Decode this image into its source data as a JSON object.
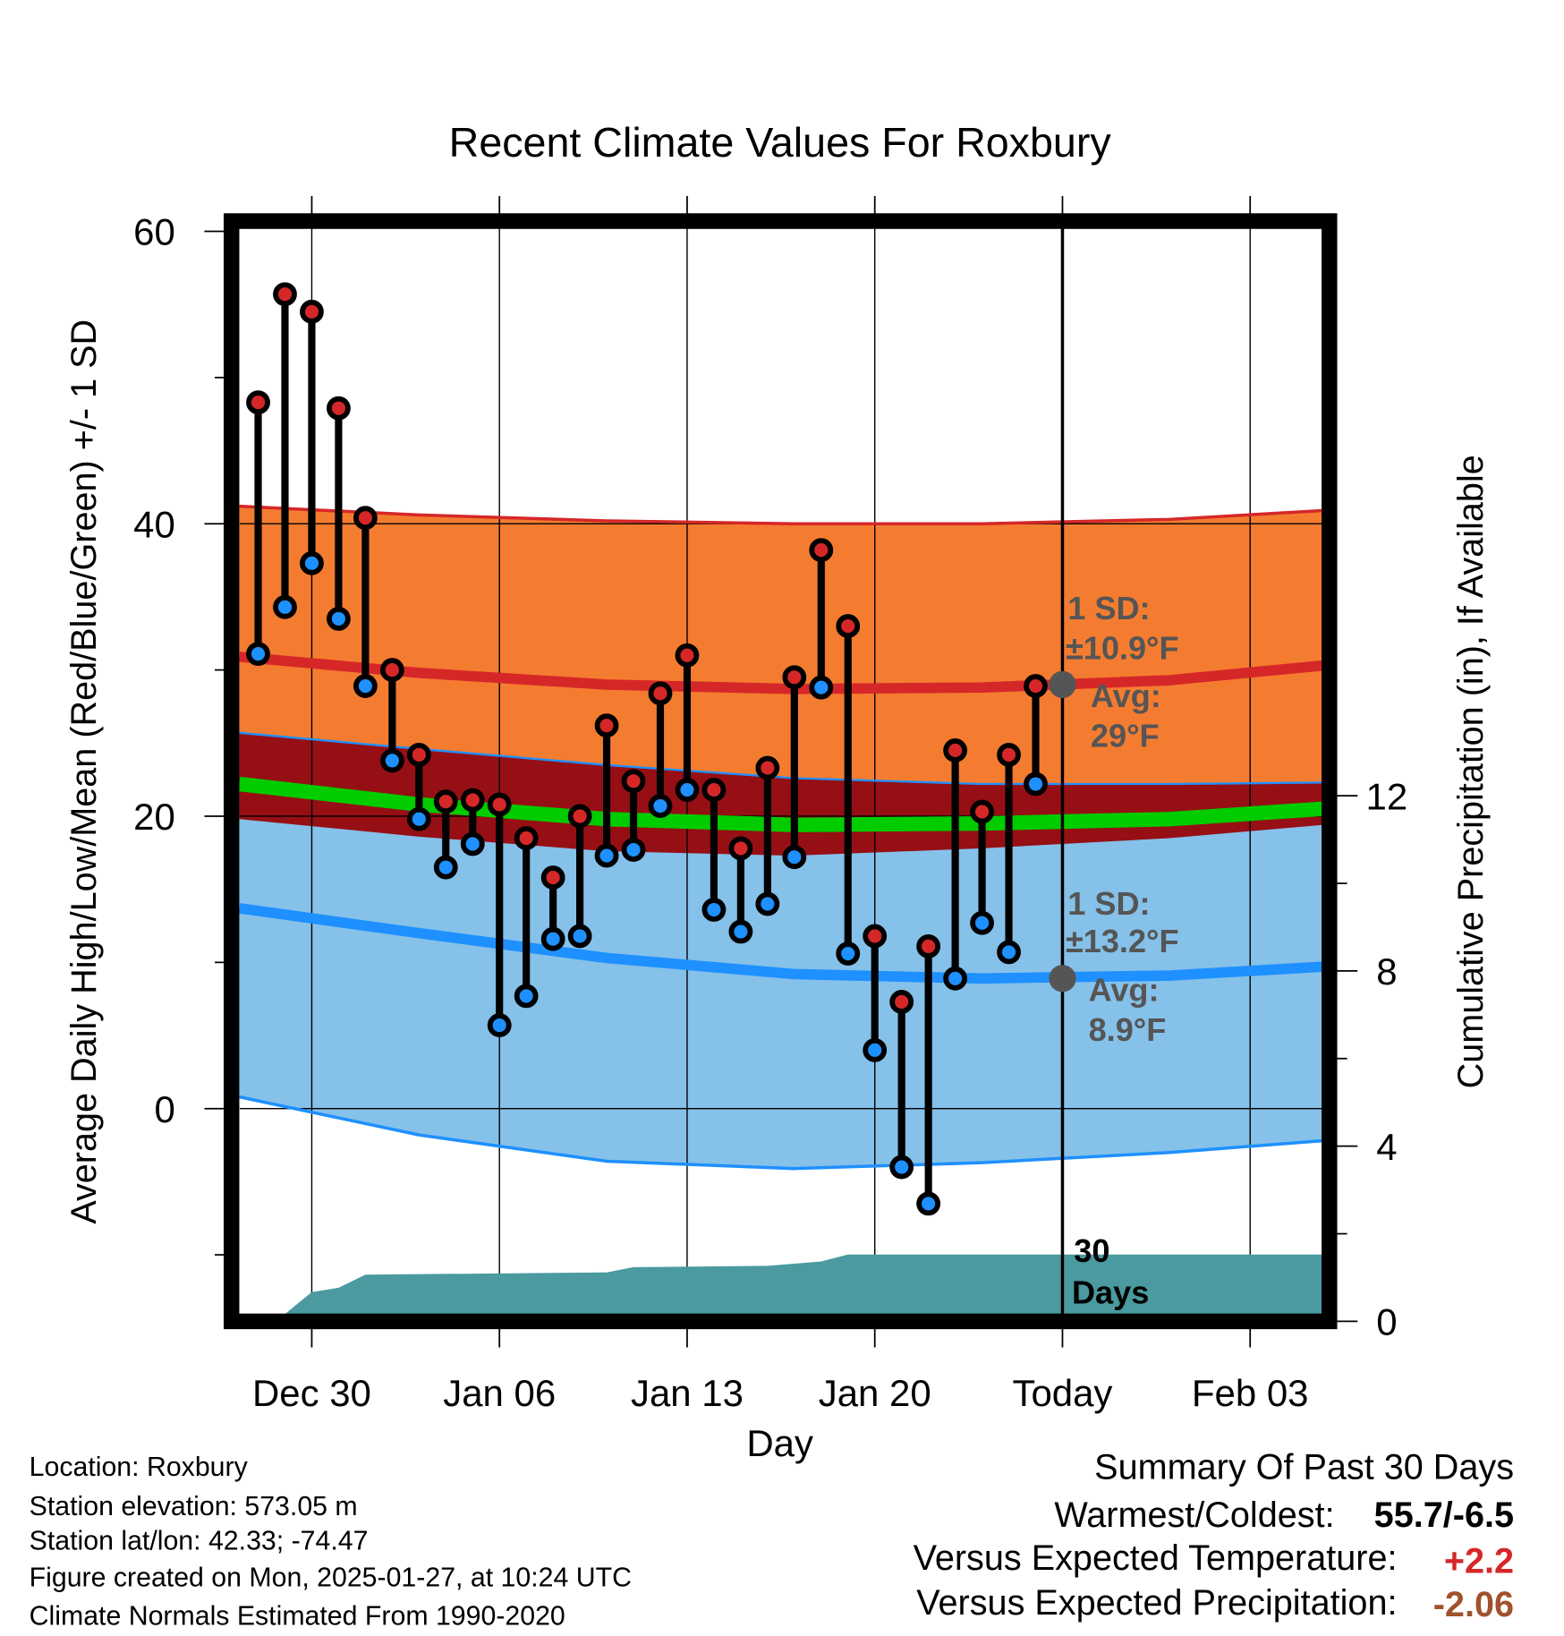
{
  "chart_data": {
    "type": "line",
    "title": "Recent Climate Values For Roxbury",
    "xlabel": "Day",
    "ylabel": "Average Daily High/Low/Mean (Red/Blue/Green) +/- 1 SD",
    "y2label": "Cumulative Precipitation (in), If Available",
    "ylim": [
      -14,
      60
    ],
    "y2lim": [
      0,
      17.6
    ],
    "grid": true,
    "x_tick_labels": [
      "Dec 30",
      "Jan 06",
      "Jan 13",
      "Jan 20",
      "Today",
      "Feb 03"
    ],
    "x_tick_days_from_dec30": [
      0,
      7,
      14,
      21,
      28,
      35
    ],
    "y_ticks": [
      60,
      40,
      20,
      0
    ],
    "y2_ticks": [
      12,
      8,
      4,
      0
    ],
    "daily": {
      "dates": [
        "Dec 28",
        "Dec 29",
        "Dec 30",
        "Dec 31",
        "Jan 01",
        "Jan 02",
        "Jan 03",
        "Jan 04",
        "Jan 05",
        "Jan 06",
        "Jan 07",
        "Jan 08",
        "Jan 09",
        "Jan 10",
        "Jan 11",
        "Jan 12",
        "Jan 13",
        "Jan 14",
        "Jan 15",
        "Jan 16",
        "Jan 17",
        "Jan 18",
        "Jan 19",
        "Jan 20",
        "Jan 21",
        "Jan 22",
        "Jan 23",
        "Jan 24",
        "Jan 25",
        "Jan 26"
      ],
      "days_from_dec30": [
        -2,
        -1,
        0,
        1,
        2,
        3,
        4,
        5,
        6,
        7,
        8,
        9,
        10,
        11,
        12,
        13,
        14,
        15,
        16,
        17,
        18,
        19,
        20,
        21,
        22,
        23,
        24,
        25,
        26,
        27
      ],
      "high": [
        48.3,
        55.7,
        54.5,
        47.9,
        40.4,
        30.0,
        24.2,
        21.0,
        21.1,
        20.8,
        18.5,
        15.8,
        20.0,
        26.2,
        22.4,
        28.4,
        31.0,
        21.8,
        17.8,
        23.3,
        29.5,
        38.2,
        33.0,
        11.8,
        7.3,
        11.1,
        24.5,
        20.3,
        24.2,
        28.9
      ],
      "low": [
        31.1,
        34.3,
        37.3,
        33.5,
        28.9,
        23.8,
        19.8,
        16.5,
        18.1,
        5.7,
        7.7,
        11.6,
        11.8,
        17.3,
        17.7,
        20.7,
        21.8,
        13.6,
        12.1,
        14.0,
        17.2,
        28.8,
        10.6,
        4.0,
        -4.0,
        -6.5,
        8.9,
        12.7,
        10.7,
        22.2
      ]
    },
    "normals": {
      "days_from_dec30": [
        -2.7,
        4,
        11,
        18,
        25,
        32,
        37.7
      ],
      "high_upper": [
        41.2,
        40.6,
        40.2,
        40.0,
        40.0,
        40.3,
        40.9
      ],
      "high_mean": [
        30.9,
        29.8,
        29.0,
        28.7,
        28.8,
        29.3,
        30.3
      ],
      "high_lower": [
        19.8,
        18.6,
        17.6,
        17.3,
        17.8,
        18.5,
        19.4
      ],
      "mean": [
        22.2,
        20.8,
        19.8,
        19.4,
        19.5,
        19.8,
        20.5
      ],
      "low_upper": [
        25.7,
        24.6,
        23.5,
        22.6,
        22.2,
        22.2,
        22.3
      ],
      "low_mean": [
        13.7,
        12.0,
        10.3,
        9.2,
        8.9,
        9.1,
        9.7
      ],
      "low_lower": [
        0.8,
        -1.8,
        -3.6,
        -4.1,
        -3.7,
        -3.0,
        -2.2
      ]
    },
    "precip": {
      "days_from_dec30": [
        -2.7,
        -1,
        0,
        1,
        2,
        11,
        12,
        17,
        18,
        19,
        20,
        37.7
      ],
      "cumulative_in": [
        0,
        0,
        0.5,
        0.6,
        0.9,
        0.95,
        1.07,
        1.1,
        1.15,
        1.2,
        1.36,
        1.36
      ]
    },
    "annotations": {
      "high_sd_label": "1 SD:",
      "high_sd_value": "±10.9°F",
      "high_avg_label": "Avg:",
      "high_avg_value": "29°F",
      "high_avg": 29,
      "low_sd_label": "1 SD:",
      "low_sd_value": "±13.2°F",
      "low_avg_label": "Avg:",
      "low_avg_value": "8.9°F",
      "low_avg": 8.9,
      "precip_label_1": "30",
      "precip_label_2": "Days"
    },
    "colors": {
      "high": "#d62728",
      "low": "#1e90ff",
      "orange_band": "#f47c30",
      "blue_band": "#85c1e9",
      "overlap": "#960f14",
      "mean": "#00cc00",
      "precip": "#4a9aa0"
    }
  },
  "footer": {
    "location": "Location: Roxbury",
    "elevation": "Station elevation: 573.05 m",
    "latlon": "Station lat/lon: 42.33; -74.47",
    "created": "Figure created on Mon, 2025-01-27, at 10:24 UTC",
    "normals": "Climate Normals Estimated From 1990-2020"
  },
  "summary": {
    "title": "Summary Of Past 30 Days",
    "warm_cold_label": "Warmest/Coldest:",
    "warm_cold_value": "55.7/-6.5",
    "temp_label": "Versus Expected Temperature:",
    "temp_value": "+2.2",
    "precip_label": "Versus Expected Precipitation:",
    "precip_value": "-2.06"
  }
}
